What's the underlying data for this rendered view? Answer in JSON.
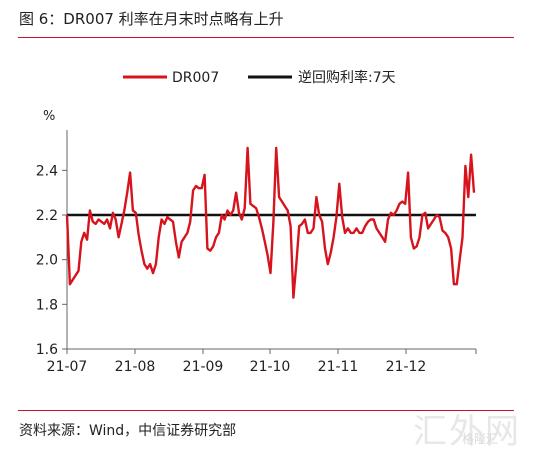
{
  "figure_title": "图 6：DR007 利率在月末时点略有上升",
  "source_note": "资料来源：Wind，中信证券研究部",
  "watermark": "汇外网",
  "watermark_sub": "格隆汇",
  "colors": {
    "rule": "#c8102e",
    "dr007": "#d7141e",
    "reverse_repo": "#111111",
    "axis": "#666666"
  },
  "chart_data": {
    "type": "line",
    "unit_label": "%",
    "ylim": [
      1.6,
      2.5
    ],
    "y_ticks": [
      "1.6",
      "1.8",
      "2.0",
      "2.2",
      "2.4"
    ],
    "x_ticks": [
      "21-07",
      "21-08",
      "21-09",
      "21-10",
      "21-11",
      "21-12"
    ],
    "legend_position": "top",
    "grid": false,
    "series": [
      {
        "name": "DR007",
        "values": [
          2.2,
          1.89,
          1.91,
          1.93,
          1.95,
          2.08,
          2.12,
          2.09,
          2.22,
          2.17,
          2.16,
          2.18,
          2.17,
          2.16,
          2.18,
          2.14,
          2.21,
          2.18,
          2.1,
          2.16,
          2.22,
          2.3,
          2.39,
          2.22,
          2.21,
          2.11,
          2.04,
          1.98,
          1.96,
          1.98,
          1.94,
          1.98,
          2.1,
          2.18,
          2.16,
          2.19,
          2.18,
          2.17,
          2.08,
          2.01,
          2.08,
          2.1,
          2.12,
          2.17,
          2.31,
          2.33,
          2.32,
          2.32,
          2.38,
          2.05,
          2.04,
          2.06,
          2.1,
          2.12,
          2.2,
          2.18,
          2.22,
          2.2,
          2.22,
          2.3,
          2.21,
          2.18,
          2.23,
          2.5,
          2.25,
          2.24,
          2.23,
          2.19,
          2.14,
          2.08,
          2.02,
          1.94,
          2.17,
          2.5,
          2.28,
          2.26,
          2.24,
          2.22,
          2.15,
          1.83,
          1.98,
          2.15,
          2.16,
          2.18,
          2.12,
          2.12,
          2.14,
          2.28,
          2.2,
          2.17,
          2.05,
          1.98,
          2.03,
          2.1,
          2.19,
          2.34,
          2.19,
          2.12,
          2.14,
          2.12,
          2.12,
          2.14,
          2.12,
          2.12,
          2.15,
          2.17,
          2.18,
          2.18,
          2.14,
          2.12,
          2.1,
          2.08,
          2.18,
          2.21,
          2.2,
          2.22,
          2.25,
          2.26,
          2.25,
          2.39,
          2.1,
          2.05,
          2.06,
          2.1,
          2.2,
          2.21,
          2.14,
          2.16,
          2.18,
          2.2,
          2.19,
          2.13,
          2.12,
          2.1,
          2.05,
          1.89,
          1.89,
          2.0,
          2.1,
          2.42,
          2.28,
          2.47,
          2.3
        ]
      },
      {
        "name": "逆回购利率:7天",
        "values": [
          2.2,
          2.2
        ]
      }
    ]
  }
}
